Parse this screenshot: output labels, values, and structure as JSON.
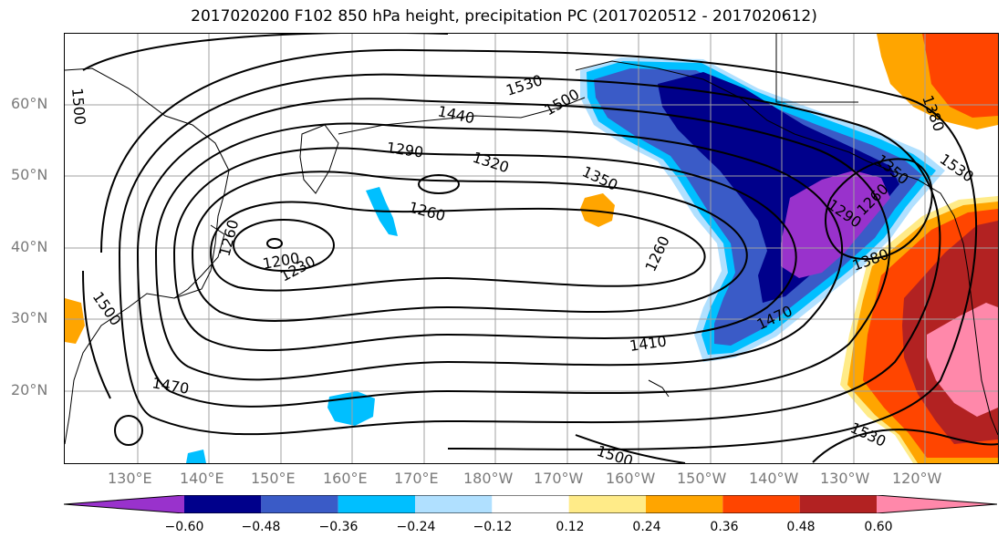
{
  "title": "2017020200 F102 850 hPa height, precipitation PC (2017020512 - 2017020612)",
  "map": {
    "lat_labels": [
      "60°N",
      "50°N",
      "40°N",
      "30°N",
      "20°N"
    ],
    "lon_labels": [
      "130°E",
      "140°E",
      "150°E",
      "160°E",
      "170°E",
      "180°W",
      "170°W",
      "160°W",
      "150°W",
      "140°W",
      "130°W",
      "120°W"
    ],
    "contour_labels": [
      "1500",
      "1530",
      "1500",
      "1440",
      "1290",
      "1320",
      "1350",
      "1260",
      "1260",
      "1260",
      "1200",
      "1230",
      "1500",
      "1470",
      "1410",
      "1470",
      "1380",
      "1290",
      "1260",
      "1350",
      "1380",
      "1530",
      "1500",
      "1530"
    ]
  },
  "colorbar": {
    "ticks": [
      "−0.60",
      "−0.48",
      "−0.36",
      "−0.24",
      "−0.12",
      "0.12",
      "0.24",
      "0.36",
      "0.48",
      "0.60"
    ],
    "colors": [
      "#9932CC",
      "#00008B",
      "#3A5BC7",
      "#00BFFF",
      "#B0E0FF",
      "#FFFFFF",
      "#FFEB88",
      "#FFA500",
      "#FF4500",
      "#B22222",
      "#FF88AA"
    ]
  }
}
